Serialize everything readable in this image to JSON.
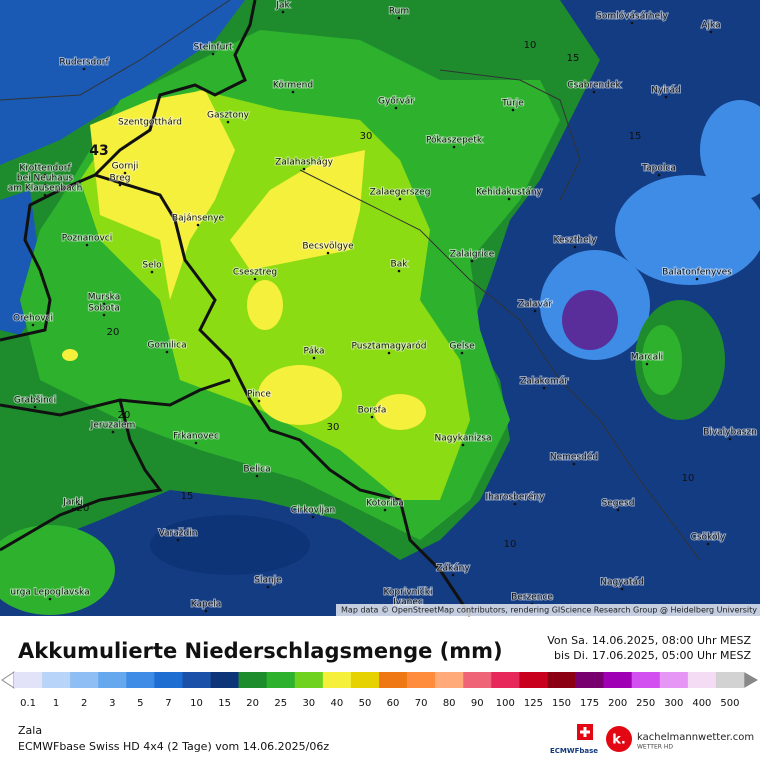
{
  "map": {
    "places": [
      "Jak",
      "Rum",
      "Somlóvásárhely",
      "Ajka",
      "Steinfurt",
      "Rudersdorf",
      "Körmend",
      "Győrvár",
      "Csabrendek",
      "Nyirád",
      "Türje",
      "Gasztony",
      "Szentgotthárd",
      "Pókaszepetk",
      "Zalahashágy",
      "Krottendorf",
      "bei Neuhaus",
      "am Klausenbach",
      "Gornji",
      "Breg",
      "Tapolca",
      "Zalaegerszeg",
      "Kehidakustány",
      "Bajánsenye",
      "Poznanovci",
      "Keszthely",
      "Becsvölgye",
      "Zalaigrice",
      "Selo",
      "Csesztreg",
      "Bak",
      "Balatonfenyves",
      "Murska",
      "Sobota",
      "Zalavár",
      "Orehovci",
      "Gomilica",
      "Páka",
      "Pusztamagyaród",
      "Gelse",
      "Marcali",
      "Zalakomár",
      "Pince",
      "Grabšinci",
      "Borsfa",
      "Jeruzalem",
      "Frkanovec",
      "Nagykanizsa",
      "Bivalybaszn",
      "Nemesdéd",
      "Belica",
      "Iharosberény",
      "Segesd",
      "Jarki",
      "Cirkovljan",
      "Kotoriba",
      "Varaždin",
      "Csököly",
      "Slanje",
      "Zákány",
      "Nagyatád",
      "Berzence",
      "Koprivnički",
      "Ivanec",
      "Kapela",
      "urga Lepoglavska"
    ],
    "contour_labels": [
      "43",
      "10",
      "15",
      "30",
      "15",
      "20",
      "20",
      "30",
      "15",
      "20",
      "10",
      "10"
    ],
    "attribution": "Map data © OpenStreetMap contributors, rendering GIScience Research Group @ Heidelberg University"
  },
  "legend": {
    "title": "Akkumulierte Niederschlagsmenge (mm)",
    "period_from": "Von Sa. 14.06.2025, 08:00 Uhr MESZ",
    "period_to": "bis Di. 17.06.2025, 05:00 Uhr MESZ",
    "values": [
      0.1,
      1,
      2,
      3,
      5,
      7,
      10,
      15,
      20,
      25,
      30,
      40,
      50,
      60,
      70,
      80,
      90,
      100,
      125,
      150,
      175,
      200,
      250,
      300,
      400,
      500
    ],
    "colors": [
      "#e2e2f8",
      "#b8d4f8",
      "#8ebef4",
      "#66a8ee",
      "#3e8ce6",
      "#1e6ed2",
      "#1a50a8",
      "#0e3478",
      "#1e8c2d",
      "#2eb22e",
      "#6ed21e",
      "#f5f03c",
      "#e6d200",
      "#f07814",
      "#ff8c3c",
      "#ffaa78",
      "#f06478",
      "#e6285a",
      "#c8001e",
      "#8c0014",
      "#78006e",
      "#a000b4",
      "#d250f0",
      "#e696f5",
      "#f5dcf5",
      "#d2d2d2"
    ]
  },
  "footer": {
    "region": "Zala",
    "model": "ECMWFbase Swiss HD 4x4 (2 Tage) vom 14.06.2025/06z",
    "badge": "ECMWFbase",
    "logo_text": "kachelmannwetter.com",
    "logo_sub": "WETTER HD"
  }
}
